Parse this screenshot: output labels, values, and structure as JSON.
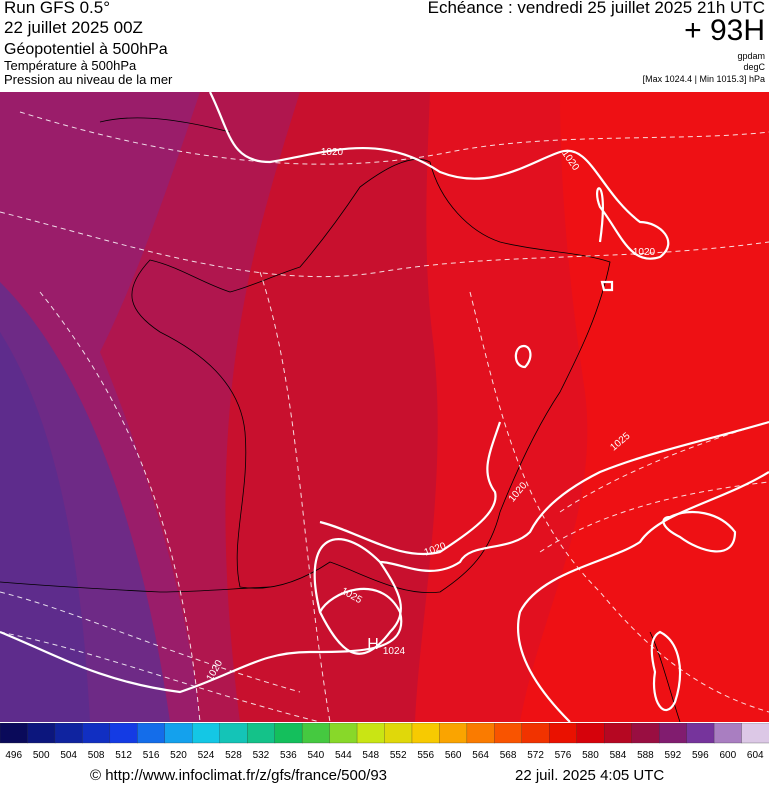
{
  "header": {
    "run": "Run GFS 0.5°",
    "run_date": "22 juillet 2025 00Z",
    "field_1": "Géopotentiel à 500hPa",
    "field_2": "Température à 500hPa",
    "field_3": "Pression au niveau de la mer",
    "valid_time": "Echéance : vendredi 25 juillet 2025 21h UTC",
    "lead": "+ 93H",
    "unit_1": "gpdam",
    "unit_2": "degC",
    "pressure_range": "[Max 1024.4 | Min 1015.3] hPa"
  },
  "map": {
    "contour_labels": [
      "1020",
      "1020",
      "1020",
      "1025",
      "1020",
      "1020",
      "1025",
      "H",
      "1024",
      "1020"
    ]
  },
  "colorbar": {
    "labels": [
      496,
      500,
      504,
      508,
      512,
      516,
      520,
      524,
      528,
      532,
      536,
      540,
      544,
      548,
      552,
      556,
      560,
      564,
      568,
      572,
      576,
      580,
      584,
      588,
      592,
      596,
      600,
      604
    ]
  },
  "footer": {
    "source": "© http://www.infoclimat.fr/z/gfs/france/500/93",
    "timestamp": "22 juil. 2025  4:05 UTC"
  }
}
